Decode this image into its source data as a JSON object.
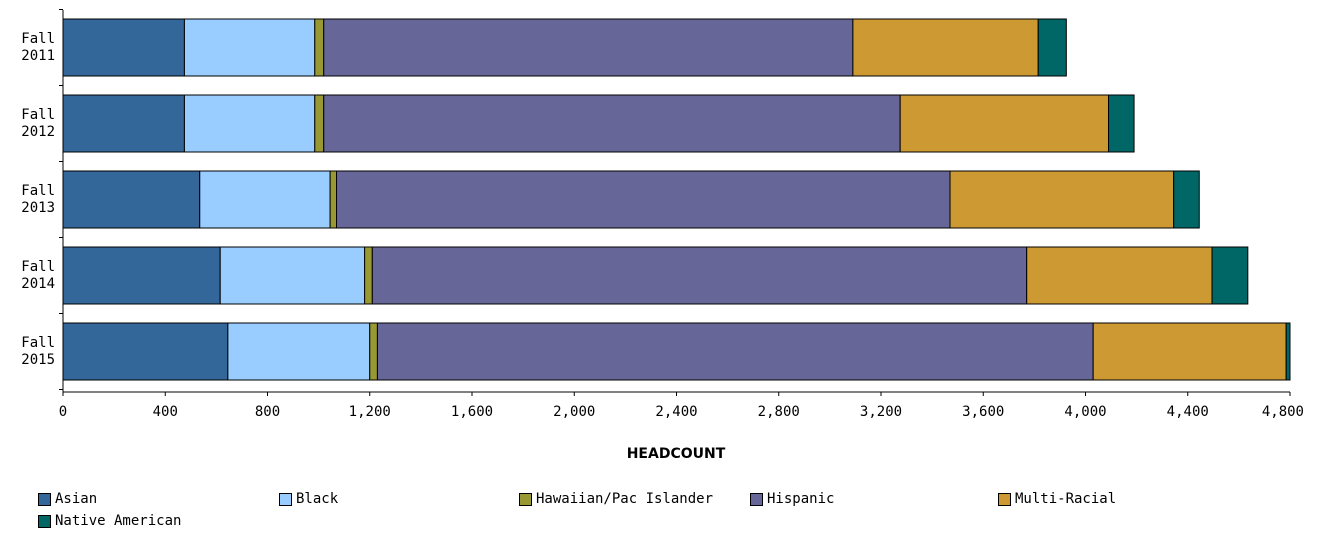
{
  "chart_data": {
    "type": "bar",
    "orientation": "horizontal",
    "stacked": true,
    "categories": [
      "Fall\n2011",
      "Fall\n2012",
      "Fall\n2013",
      "Fall\n2014",
      "Fall\n2015"
    ],
    "series": [
      {
        "name": "Asian",
        "color": "#336699",
        "values": [
          475,
          475,
          535,
          615,
          645
        ]
      },
      {
        "name": "Black",
        "color": "#99ccff",
        "values": [
          510,
          510,
          510,
          565,
          555
        ]
      },
      {
        "name": "Hawaiian/Pac Islander",
        "color": "#999933",
        "values": [
          35,
          35,
          25,
          30,
          30
        ]
      },
      {
        "name": "Hispanic",
        "color": "#666699",
        "values": [
          2070,
          2255,
          2400,
          2560,
          2800
        ]
      },
      {
        "name": "Multi-Racial",
        "color": "#cc9933",
        "values": [
          725,
          815,
          875,
          725,
          755
        ]
      },
      {
        "name": "Native American",
        "color": "#006666",
        "values": [
          110,
          100,
          100,
          140,
          15
        ]
      }
    ],
    "xlabel": "HEADCOUNT",
    "ylabel": "",
    "xlim": [
      0,
      4800
    ],
    "xticks": [
      0,
      400,
      800,
      1200,
      1600,
      2000,
      2400,
      2800,
      3200,
      3600,
      4000,
      4400,
      4800
    ],
    "xtick_labels": [
      "0",
      "400",
      "800",
      "1,200",
      "1,600",
      "2,000",
      "2,400",
      "2,800",
      "3,200",
      "3,600",
      "4,000",
      "4,400",
      "4,800"
    ],
    "grid": false,
    "legend_position": "bottom"
  }
}
